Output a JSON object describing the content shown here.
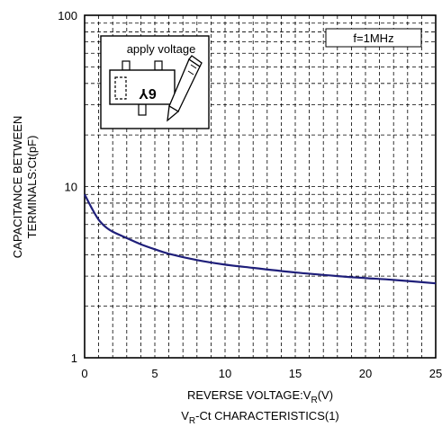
{
  "chart_data": {
    "type": "line",
    "title": "",
    "xlabel": "REVERSE VOLTAGE:V",
    "xlabel_sub": "R",
    "xlabel_unit": "(V)",
    "ylabel_line1": "CAPACITANCE BETWEEN",
    "ylabel_line2": "TERMINALS:Ct(pF)",
    "caption_main": "V",
    "caption_sub": "R",
    "caption_rest": "-Ct CHARACTERISTICS(1)",
    "xlim": [
      0,
      25
    ],
    "ylim": [
      1,
      100
    ],
    "yscale": "log",
    "grid": true,
    "x_ticks": [
      "0",
      "5",
      "10",
      "15",
      "20",
      "25"
    ],
    "y_ticks": [
      "1",
      "10",
      "100"
    ],
    "annotation": "f=1MHz",
    "inset_label": "apply voltage",
    "inset_chip_text": "6Y",
    "curve_color": "#1f1f7a",
    "series": [
      {
        "x": [
          0,
          0.5,
          1,
          1.5,
          2,
          3,
          4,
          5,
          6,
          8,
          10,
          12,
          15,
          18,
          20,
          22,
          25
        ],
        "values": [
          9.0,
          7.5,
          6.4,
          5.8,
          5.45,
          5.0,
          4.6,
          4.3,
          4.05,
          3.72,
          3.5,
          3.35,
          3.15,
          3.0,
          2.92,
          2.85,
          2.72
        ]
      }
    ]
  }
}
